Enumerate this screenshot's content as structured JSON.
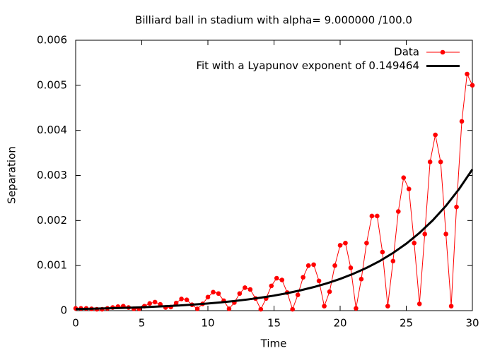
{
  "chart_data": {
    "type": "line",
    "title": "Billiard ball in stadium with alpha= 9.000000 /100.0",
    "x_label": "Time",
    "y_label": "Separation",
    "xlim": [
      0,
      30
    ],
    "ylim": [
      0,
      0.006
    ],
    "xticks": [
      0,
      5,
      10,
      15,
      20,
      25,
      30
    ],
    "yticks": [
      0,
      0.001,
      0.002,
      0.003,
      0.004,
      0.005,
      0.006
    ],
    "legend": "top-right",
    "series": [
      {
        "name": "Data",
        "color": "#ff0000",
        "style": "linespoints",
        "x": [
          0,
          0.4,
          0.8,
          1.2,
          1.6,
          2.0,
          2.4,
          2.8,
          3.2,
          3.6,
          4.0,
          4.4,
          4.8,
          5.2,
          5.6,
          6.0,
          6.4,
          6.8,
          7.2,
          7.6,
          8.0,
          8.4,
          8.8,
          9.2,
          9.6,
          10.0,
          10.4,
          10.8,
          11.2,
          11.6,
          12.0,
          12.4,
          12.8,
          13.2,
          13.6,
          14.0,
          14.4,
          14.8,
          15.2,
          15.6,
          16.0,
          16.4,
          16.8,
          17.2,
          17.6,
          18.0,
          18.4,
          18.8,
          19.2,
          19.6,
          20.0,
          20.4,
          20.8,
          21.2,
          21.6,
          22.0,
          22.4,
          22.8,
          23.2,
          23.6,
          24.0,
          24.4,
          24.8,
          25.2,
          25.6,
          26.0,
          26.4,
          26.8,
          27.2,
          27.6,
          28.0,
          28.4,
          28.8,
          29.2,
          29.6,
          30.0
        ],
        "values": [
          5e-05,
          5e-05,
          5e-05,
          4e-05,
          3e-05,
          3e-05,
          5e-05,
          7e-05,
          9e-05,
          0.0001,
          7e-05,
          4e-05,
          4e-05,
          0.0001,
          0.00016,
          0.00019,
          0.00014,
          7e-05,
          8e-05,
          0.00017,
          0.00026,
          0.00024,
          0.00013,
          4e-05,
          0.00015,
          0.0003,
          0.00041,
          0.00038,
          0.00022,
          4e-05,
          0.00018,
          0.00038,
          0.00051,
          0.00047,
          0.00027,
          3e-05,
          0.00027,
          0.00055,
          0.00072,
          0.00068,
          0.0004,
          3e-05,
          0.00035,
          0.00074,
          0.001,
          0.00102,
          0.00066,
          0.0001,
          0.00042,
          0.001,
          0.00145,
          0.0015,
          0.00095,
          5e-05,
          0.0007,
          0.0015,
          0.0021,
          0.0021,
          0.0013,
          0.0001,
          0.0011,
          0.0022,
          0.00295,
          0.0027,
          0.0015,
          0.00015,
          0.0017,
          0.0033,
          0.0039,
          0.0033,
          0.0017,
          0.0001,
          0.0023,
          0.0042,
          0.00525,
          0.005
        ]
      },
      {
        "name": "Fit with a Lyapunov exponent of 0.149464",
        "color": "#000000",
        "style": "line",
        "x": [
          0,
          1,
          2,
          3,
          4,
          5,
          6,
          7,
          8,
          9,
          10,
          11,
          12,
          13,
          14,
          15,
          16,
          17,
          18,
          19,
          20,
          21,
          22,
          23,
          24,
          25,
          26,
          27,
          28,
          29,
          30
        ],
        "values": [
          3.56e-05,
          4.13e-05,
          4.8e-05,
          5.57e-05,
          6.47e-05,
          7.51e-05,
          8.72e-05,
          0.0001012,
          0.0001175,
          0.0001364,
          0.0001584,
          0.0001839,
          0.0002134,
          0.0002478,
          0.0002877,
          0.000334,
          0.0003878,
          0.0004502,
          0.0005227,
          0.0006068,
          0.0007045,
          0.000818,
          0.00095,
          0.001102,
          0.00128,
          0.001486,
          0.001725,
          0.002003,
          0.002325,
          0.0027,
          0.003134
        ]
      }
    ]
  }
}
